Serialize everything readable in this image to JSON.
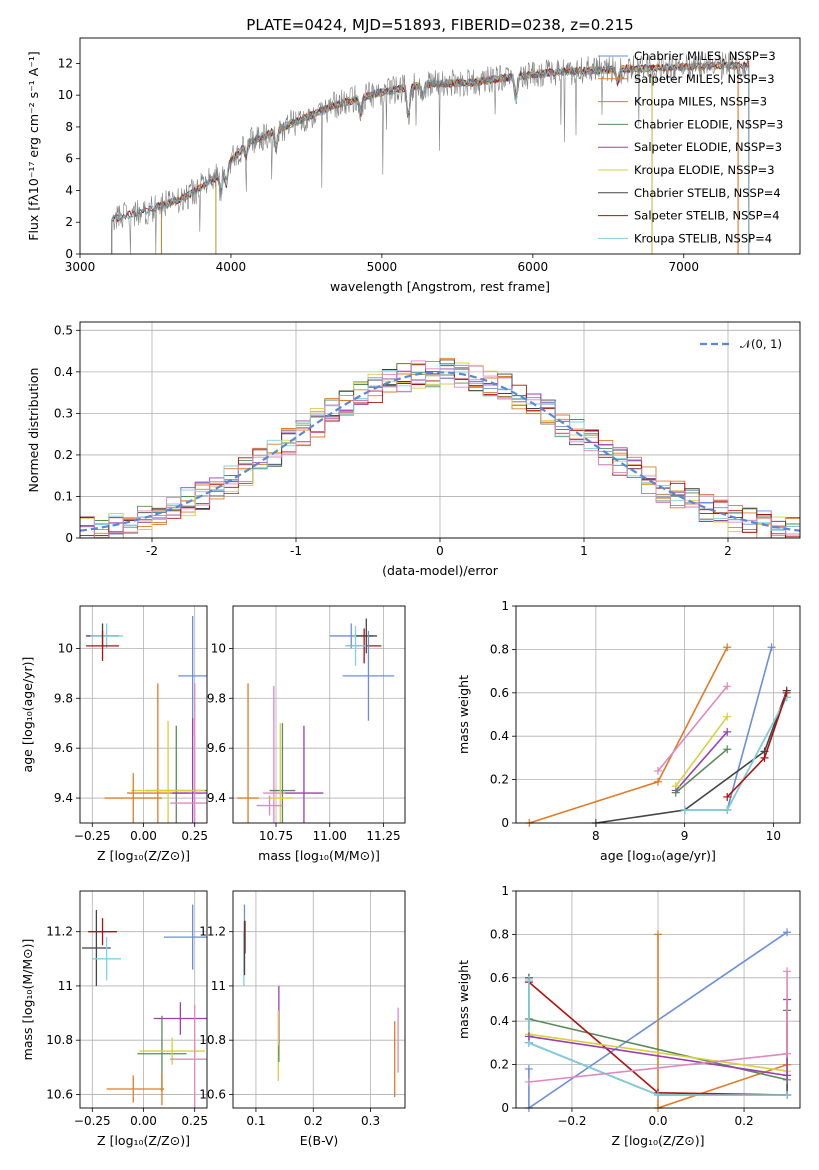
{
  "chart_data": [
    {
      "type": "line",
      "title": "PLATE=0424, MJD=51893, FIBERID=0238, z=0.215",
      "xlabel": "wavelength [Angstrom, rest frame]",
      "ylabel": "Flux [fλ10⁻¹⁷ erg cm⁻² s⁻¹ A⁻¹]",
      "xlim": [
        3000,
        7770
      ],
      "ylim": [
        0,
        13.6
      ],
      "xticks": [
        3000,
        4000,
        5000,
        6000,
        7000
      ],
      "yticks": [
        0,
        2,
        4,
        6,
        8,
        10,
        12
      ],
      "legend_position": "top-right",
      "series": [
        {
          "name": "Chabrier MILES, N_SSP=3",
          "color": "#6a8fd8",
          "x_range": [
            3540,
            7360
          ]
        },
        {
          "name": "Salpeter MILES, N_SSP=3",
          "color": "#e07b28",
          "x_range": [
            3540,
            7360
          ]
        },
        {
          "name": "Kroupa MILES, N_SSP=3",
          "color": "#e07b28",
          "x_range": [
            3540,
            7360
          ]
        },
        {
          "name": "Chabrier ELODIE, N_SSP=3",
          "color": "#5a8a5a",
          "x_range": [
            3900,
            6790
          ]
        },
        {
          "name": "Salpeter ELODIE, N_SSP=3",
          "color": "#9a3fb0",
          "x_range": [
            3900,
            6790
          ]
        },
        {
          "name": "Kroupa ELODIE, N_SSP=3",
          "color": "#d8d040",
          "x_range": [
            3900,
            6790
          ]
        },
        {
          "name": "Chabrier STELIB, N_SSP=4",
          "color": "#444444",
          "x_range": [
            3210,
            7430
          ]
        },
        {
          "name": "Salpeter STELIB, N_SSP=4",
          "color": "#b01010",
          "x_range": [
            3210,
            7430
          ]
        },
        {
          "name": "Kroupa STELIB, N_SSP=4",
          "color": "#7fd0e0",
          "x_range": [
            3210,
            7430
          ]
        }
      ],
      "data_x_range": [
        3210,
        7430
      ],
      "continuum_points": [
        [
          3210,
          2.2
        ],
        [
          3500,
          2.9
        ],
        [
          3700,
          3.6
        ],
        [
          3900,
          4.8
        ],
        [
          4100,
          6.9
        ],
        [
          4300,
          7.8
        ],
        [
          4500,
          8.6
        ],
        [
          4700,
          9.4
        ],
        [
          5000,
          10.2
        ],
        [
          5300,
          10.7
        ],
        [
          5600,
          10.8
        ],
        [
          5900,
          11.2
        ],
        [
          6200,
          11.5
        ],
        [
          6500,
          11.6
        ],
        [
          6800,
          11.7
        ],
        [
          7100,
          11.8
        ],
        [
          7430,
          11.9
        ]
      ]
    },
    {
      "type": "bar",
      "xlabel": "(data-model)/error",
      "ylabel": "Normed distribution",
      "xlim": [
        -2.5,
        2.5
      ],
      "ylim": [
        0,
        0.52
      ],
      "xticks": [
        -2,
        -1,
        0,
        1,
        2
      ],
      "yticks": [
        0.0,
        0.1,
        0.2,
        0.3,
        0.4,
        0.5
      ],
      "bin_width": 0.1,
      "reference_curve": "𝒩(0, 1)",
      "reference_color": "#5b87d4",
      "legend_position": "top-right",
      "series_colors": [
        "#6a8fd8",
        "#e07b28",
        "#e07b28",
        "#5a8a5a",
        "#9a3fb0",
        "#d8d040",
        "#444444",
        "#b01010",
        "#7fd0e0",
        "#e088c0"
      ]
    },
    {
      "type": "scatter",
      "xlabel": "Z [log₁₀(Z/Z⊙)]",
      "ylabel": "age  [log₁₀(age/yr)]",
      "xlim": [
        -0.31,
        0.31
      ],
      "ylim": [
        9.3,
        10.17
      ],
      "xticks": [
        -0.25,
        0.0,
        0.25
      ],
      "xticklabels": [
        "−0.25",
        "0.00",
        "0.25"
      ],
      "yticks": [
        9.4,
        9.6,
        9.8,
        10.0
      ],
      "points": [
        {
          "x": -0.2,
          "y": 10.05,
          "xerr": 0.08,
          "yerr": 0.05,
          "color": "#444444"
        },
        {
          "x": -0.18,
          "y": 10.05,
          "xerr": 0.08,
          "yerr": 0.05,
          "color": "#7fd0e0"
        },
        {
          "x": -0.2,
          "y": 10.01,
          "xerr": 0.08,
          "yerr": 0.06,
          "color": "#b01010"
        },
        {
          "x": 0.24,
          "y": 9.89,
          "xerr": 0.07,
          "yerr": 0.24,
          "color": "#6a8fd8"
        },
        {
          "x": 0.07,
          "y": 9.42,
          "xerr": 0.15,
          "yerr": 0.44,
          "color": "#e07b28"
        },
        {
          "x": 0.16,
          "y": 9.43,
          "xerr": 0.15,
          "yerr": 0.26,
          "color": "#5a8a5a"
        },
        {
          "x": 0.24,
          "y": 9.42,
          "xerr": 0.1,
          "yerr": 0.3,
          "color": "#9a3fb0"
        },
        {
          "x": 0.12,
          "y": 9.43,
          "xerr": 0.18,
          "yerr": 0.28,
          "color": "#d8d040"
        },
        {
          "x": 0.25,
          "y": 9.38,
          "xerr": 0.12,
          "yerr": 0.48,
          "color": "#e088c0"
        },
        {
          "x": -0.05,
          "y": 9.4,
          "xerr": 0.14,
          "yerr": 0.1,
          "color": "#e07b28"
        }
      ]
    },
    {
      "type": "scatter",
      "xlabel": "mass [log₁₀(M/M⊙)]",
      "ylabel": "",
      "xlim": [
        10.55,
        11.35
      ],
      "ylim": [
        9.3,
        10.17
      ],
      "xticks": [
        10.75,
        11.0,
        11.25
      ],
      "xticklabels": [
        "10.75",
        "11.00",
        "11.25"
      ],
      "yticks": [
        9.4,
        9.6,
        9.8,
        10.0
      ],
      "points": [
        {
          "x": 11.1,
          "y": 10.05,
          "xerr": 0.1,
          "yerr": 0.05,
          "color": "#6a8fd8"
        },
        {
          "x": 11.17,
          "y": 10.05,
          "xerr": 0.05,
          "yerr": 0.07,
          "color": "#444444"
        },
        {
          "x": 11.16,
          "y": 10.01,
          "xerr": 0.08,
          "yerr": 0.07,
          "color": "#b01010"
        },
        {
          "x": 11.18,
          "y": 9.89,
          "xerr": 0.12,
          "yerr": 0.18,
          "color": "#6a8fd8"
        },
        {
          "x": 11.12,
          "y": 10.01,
          "xerr": 0.05,
          "yerr": 0.08,
          "color": "#7fd0e0"
        },
        {
          "x": 10.62,
          "y": 9.4,
          "xerr": 0.05,
          "yerr": 0.46,
          "color": "#e07b28"
        },
        {
          "x": 10.74,
          "y": 9.42,
          "xerr": 0.05,
          "yerr": 0.43,
          "color": "#e088c0"
        },
        {
          "x": 10.78,
          "y": 9.43,
          "xerr": 0.06,
          "yerr": 0.27,
          "color": "#5a8a5a"
        },
        {
          "x": 10.88,
          "y": 9.42,
          "xerr": 0.09,
          "yerr": 0.27,
          "color": "#9a3fb0"
        },
        {
          "x": 10.77,
          "y": 9.4,
          "xerr": 0.06,
          "yerr": 0.3,
          "color": "#d8d040"
        },
        {
          "x": 10.72,
          "y": 9.37,
          "xerr": 0.06,
          "yerr": 0.04,
          "color": "#e088c0"
        }
      ]
    },
    {
      "type": "line",
      "xlabel": "age  [log₁₀(age/yr)]",
      "ylabel": "mass weight",
      "xlim": [
        7.1,
        10.3
      ],
      "ylim": [
        0,
        1.0
      ],
      "xticks": [
        8,
        9,
        10
      ],
      "yticks": [
        0.0,
        0.2,
        0.4,
        0.6,
        0.8,
        1.0
      ],
      "series": [
        {
          "color": "#e07b28",
          "x": [
            7.25,
            8.7,
            9.48
          ],
          "y": [
            0.0,
            0.19,
            0.81
          ]
        },
        {
          "color": "#6a8fd8",
          "x": [
            9.48,
            9.98
          ],
          "y": [
            0.06,
            0.81
          ]
        },
        {
          "color": "#444444",
          "x": [
            8.0,
            9.0,
            9.9,
            10.15
          ],
          "y": [
            0.0,
            0.06,
            0.33,
            0.61
          ]
        },
        {
          "color": "#5a8a5a",
          "x": [
            9.0,
            9.48,
            10.15
          ],
          "y": [
            0.06,
            0.06,
            0.58
          ]
        },
        {
          "color": "#7fd0e0",
          "x": [
            9.0,
            9.48,
            10.15
          ],
          "y": [
            0.06,
            0.06,
            0.58
          ]
        },
        {
          "color": "#e088c0",
          "x": [
            8.7,
            9.48
          ],
          "y": [
            0.24,
            0.63
          ]
        },
        {
          "color": "#9a3fb0",
          "x": [
            8.9,
            9.48
          ],
          "y": [
            0.15,
            0.42
          ]
        },
        {
          "color": "#d8d040",
          "x": [
            8.9,
            9.48
          ],
          "y": [
            0.17,
            0.49
          ]
        },
        {
          "color": "#5a8a5a",
          "x": [
            8.9,
            9.48
          ],
          "y": [
            0.14,
            0.34
          ]
        },
        {
          "color": "#b01010",
          "x": [
            9.48,
            9.9,
            10.15
          ],
          "y": [
            0.12,
            0.3,
            0.6
          ]
        }
      ]
    },
    {
      "type": "scatter",
      "xlabel": "Z [log₁₀(Z/Z⊙)]",
      "ylabel": "mass [log₁₀(M/M⊙)]",
      "xlim": [
        -0.31,
        0.31
      ],
      "ylim": [
        10.55,
        11.35
      ],
      "xticks": [
        -0.25,
        0.0,
        0.25
      ],
      "xticklabels": [
        "−0.25",
        "0.00",
        "0.25"
      ],
      "yticks": [
        10.6,
        10.8,
        11.0,
        11.2
      ],
      "points": [
        {
          "x": -0.2,
          "y": 11.2,
          "xerr": 0.07,
          "yerr": 0.05,
          "color": "#b01010"
        },
        {
          "x": -0.23,
          "y": 11.14,
          "xerr": 0.07,
          "yerr": 0.14,
          "color": "#444444"
        },
        {
          "x": -0.18,
          "y": 11.1,
          "xerr": 0.07,
          "yerr": 0.08,
          "color": "#7fd0e0"
        },
        {
          "x": 0.24,
          "y": 11.18,
          "xerr": 0.14,
          "yerr": 0.12,
          "color": "#6a8fd8"
        },
        {
          "x": 0.18,
          "y": 10.88,
          "xerr": 0.13,
          "yerr": 0.06,
          "color": "#9a3fb0"
        },
        {
          "x": 0.09,
          "y": 10.75,
          "xerr": 0.12,
          "yerr": 0.14,
          "color": "#5a8a5a"
        },
        {
          "x": 0.14,
          "y": 10.76,
          "xerr": 0.16,
          "yerr": 0.05,
          "color": "#d8d040"
        },
        {
          "x": 0.25,
          "y": 10.73,
          "xerr": 0.12,
          "yerr": 0.2,
          "color": "#e088c0"
        },
        {
          "x": -0.05,
          "y": 10.62,
          "xerr": 0.13,
          "yerr": 0.05,
          "color": "#e07b28"
        },
        {
          "x": 0.09,
          "y": 10.62,
          "xerr": 0.01,
          "yerr": 0.06,
          "color": "#e07b28"
        }
      ]
    },
    {
      "type": "scatter",
      "xlabel": "E(B-V)",
      "ylabel": "",
      "xlim": [
        0.06,
        0.36
      ],
      "ylim": [
        10.55,
        11.35
      ],
      "xticks": [
        0.1,
        0.2,
        0.3
      ],
      "yticks": [
        10.6,
        10.8,
        11.0,
        11.2
      ],
      "points": [
        {
          "x": 0.08,
          "y": 11.17,
          "yerr": 0.13,
          "color": "#6a8fd8"
        },
        {
          "x": 0.081,
          "y": 11.18,
          "yerr": 0.06,
          "color": "#b01010"
        },
        {
          "x": 0.079,
          "y": 11.1,
          "yerr": 0.1,
          "color": "#7fd0e0"
        },
        {
          "x": 0.08,
          "y": 11.14,
          "yerr": 0.1,
          "color": "#444444"
        },
        {
          "x": 0.14,
          "y": 10.88,
          "yerr": 0.12,
          "color": "#9a3fb0"
        },
        {
          "x": 0.139,
          "y": 10.78,
          "yerr": 0.13,
          "color": "#d8d040"
        },
        {
          "x": 0.14,
          "y": 10.75,
          "yerr": 0.03,
          "color": "#5a8a5a"
        },
        {
          "x": 0.342,
          "y": 10.73,
          "yerr": 0.14,
          "color": "#e07b28"
        },
        {
          "x": 0.348,
          "y": 10.8,
          "yerr": 0.12,
          "color": "#e088c0"
        }
      ]
    },
    {
      "type": "line",
      "xlabel": "Z [log₁₀(Z/Z⊙)]",
      "ylabel": "mass weight",
      "xlim": [
        -0.33,
        0.33
      ],
      "ylim": [
        0,
        1.0
      ],
      "xticks": [
        -0.2,
        0.0,
        0.2
      ],
      "xticklabels": [
        "−0.2",
        "0.0",
        "0.2"
      ],
      "yticks": [
        0.0,
        0.2,
        0.4,
        0.6,
        0.8,
        1.0
      ],
      "series": [
        {
          "color": "#6a8fd8",
          "x": [
            -0.3,
            -0.3,
            0.3
          ],
          "y": [
            0.18,
            0.0,
            0.81
          ]
        },
        {
          "color": "#e07b28",
          "x": [
            0.0,
            0.0,
            0.3
          ],
          "y": [
            0.8,
            0.0,
            0.2
          ]
        },
        {
          "color": "#444444",
          "x": [
            -0.3,
            -0.3,
            0.0,
            0.3,
            0.3
          ],
          "y": [
            0.6,
            0.3,
            0.06,
            0.06,
            0.15
          ]
        },
        {
          "color": "#5a8a5a",
          "x": [
            -0.3,
            0.3,
            0.3
          ],
          "y": [
            0.41,
            0.13,
            0.45
          ]
        },
        {
          "color": "#b01010",
          "x": [
            -0.3,
            0.0,
            0.3
          ],
          "y": [
            0.58,
            0.07,
            0.06
          ]
        },
        {
          "color": "#7fd0e0",
          "x": [
            -0.3,
            -0.3,
            0.0,
            0.3
          ],
          "y": [
            0.59,
            0.3,
            0.06,
            0.06
          ]
        },
        {
          "color": "#d8d040",
          "x": [
            -0.3,
            0.3,
            0.3
          ],
          "y": [
            0.34,
            0.17,
            0.5
          ]
        },
        {
          "color": "#9a3fb0",
          "x": [
            -0.3,
            0.3,
            0.3
          ],
          "y": [
            0.33,
            0.15,
            0.5
          ]
        },
        {
          "color": "#e088c0",
          "x": [
            -0.3,
            0.3,
            0.3
          ],
          "y": [
            0.12,
            0.25,
            0.63
          ]
        }
      ]
    }
  ]
}
